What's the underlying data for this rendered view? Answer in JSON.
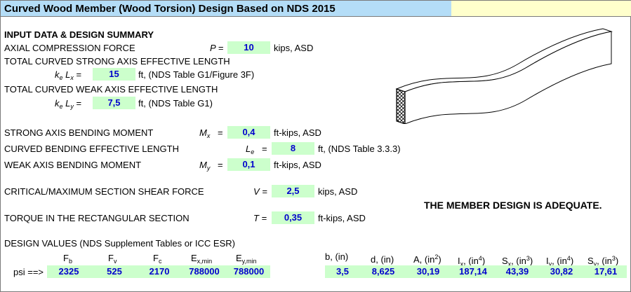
{
  "title": "Curved Wood Member (Wood Torsion) Design Based on NDS 2015",
  "section_heading": "INPUT DATA & DESIGN SUMMARY",
  "inputs": {
    "axial": {
      "label": "AXIAL COMPRESSION FORCE",
      "symbol": "P =",
      "value": "10",
      "unit": "kips, ASD"
    },
    "strong_len_heading": "TOTAL CURVED STRONG AXIS EFFECTIVE LENGTH",
    "kelx": {
      "sym_k": "k",
      "sym_e": "e",
      "sym_L": "L",
      "sym_x": "x",
      "eq": "=",
      "value": "15",
      "unit": "ft, (NDS Table G1/Figure 3F)"
    },
    "weak_len_heading": "TOTAL CURVED WEAK AXIS EFFECTIVE LENGTH",
    "kely": {
      "sym_k": "k",
      "sym_e": "e",
      "sym_L": "L",
      "sym_y": "y",
      "eq": "=",
      "value": "7,5",
      "unit": "ft, (NDS Table G1)"
    },
    "mx": {
      "label": "STRONG AXIS BENDING MOMENT",
      "sym": "M",
      "sub": "x",
      "eq": "=",
      "value": "0,4",
      "unit": "ft-kips, ASD"
    },
    "le": {
      "label": "CURVED BENDING EFFECTIVE LENGTH",
      "sym": "L",
      "sub": "e",
      "eq": "=",
      "value": "8",
      "unit": "ft, (NDS Table 3.3.3)"
    },
    "my": {
      "label": "WEAK AXIS BENDING MOMENT",
      "sym": "M",
      "sub": "y",
      "eq": "=",
      "value": "0,1",
      "unit": "ft-kips, ASD"
    },
    "v": {
      "label": "CRITICAL/MAXIMUM SECTION SHEAR FORCE",
      "symbol": "V =",
      "value": "2,5",
      "unit": "kips, ASD"
    },
    "t": {
      "label": "TORQUE IN THE RECTANGULAR SECTION",
      "symbol": "T =",
      "value": "0,35",
      "unit": "ft-kips, ASD"
    }
  },
  "result": "THE MEMBER DESIGN IS ADEQUATE.",
  "design_values": {
    "heading": "DESIGN VALUES (NDS Supplement Tables or ICC ESR)",
    "row_label": "psi ==>",
    "headers": {
      "fb": {
        "main": "F",
        "sub": "b"
      },
      "fv": {
        "main": "F",
        "sub": "v"
      },
      "fc": {
        "main": "F",
        "sub": "c"
      },
      "ex": {
        "main": "E",
        "sub": "x,min"
      },
      "ey": {
        "main": "E",
        "sub": "y,min"
      }
    },
    "values": {
      "fb": "2325",
      "fv": "525",
      "fc": "2170",
      "ex": "788000",
      "ey": "788000"
    }
  },
  "section_props": {
    "headers": {
      "b": {
        "main": "b, (in)"
      },
      "d": {
        "main": "d, (in)"
      },
      "a": {
        "main": "A, (in",
        "sup": "2",
        "close": ")"
      },
      "ix": {
        "main": "I",
        "sub": "x",
        "rest": ", (in",
        "sup": "4",
        "close": ")"
      },
      "sx": {
        "main": "S",
        "sub": "x",
        "rest": ", (in",
        "sup": "3",
        "close": ")"
      },
      "iy": {
        "main": "I",
        "sub": "y",
        "rest": ", (in",
        "sup": "4",
        "close": ")"
      },
      "sy": {
        "main": "S",
        "sub": "y",
        "rest": ", (in",
        "sup": "3",
        "close": ")"
      }
    },
    "values": {
      "b": "3,5",
      "d": "8,625",
      "a": "30,19",
      "ix": "187,14",
      "sx": "43,39",
      "iy": "30,82",
      "sy": "17,61"
    }
  },
  "icons": {
    "beam": "curved-beam-illustration"
  }
}
